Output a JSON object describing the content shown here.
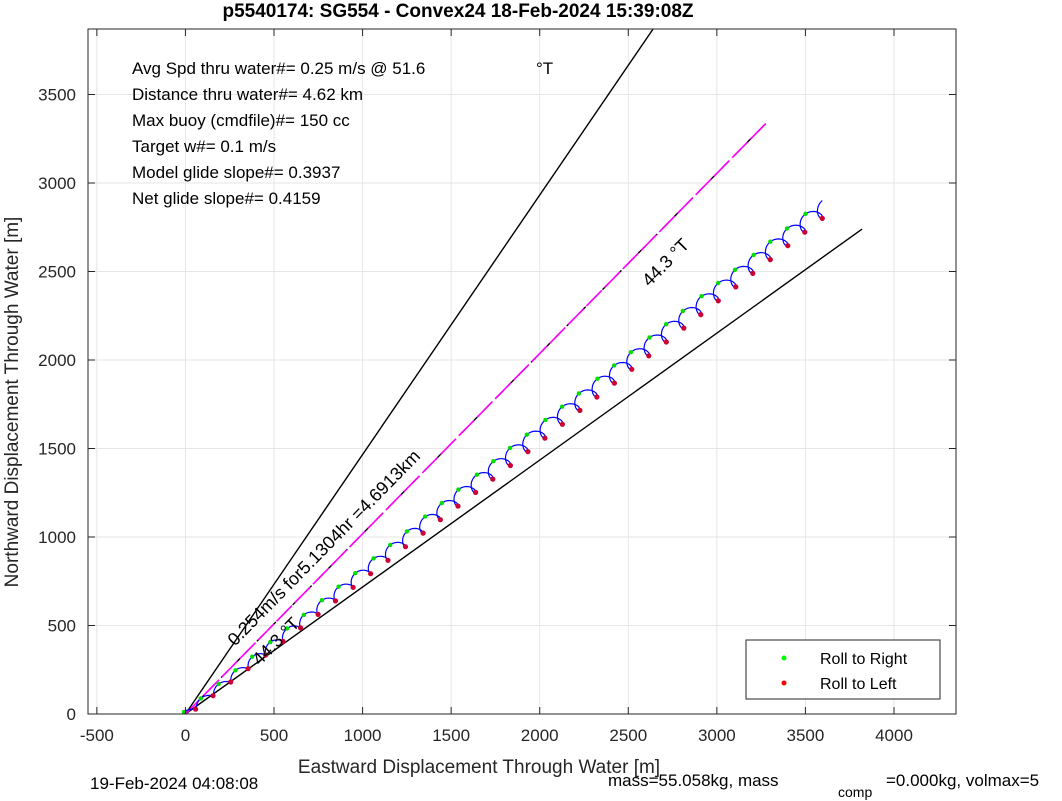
{
  "chart_data": {
    "type": "line",
    "title": "p5540174: SG554 - Convex24 18-Feb-2024 15:39:08Z",
    "xlabel": "Eastward Displacement Through Water [m]",
    "ylabel": "Northward Displacement Through Water [m]",
    "xlim": [
      -550,
      4350
    ],
    "ylim": [
      0,
      3870
    ],
    "x_ticks": [
      -500,
      0,
      500,
      1000,
      1500,
      2000,
      2500,
      3000,
      3500,
      4000
    ],
    "y_ticks": [
      0,
      500,
      1000,
      1500,
      2000,
      2500,
      3000,
      3500
    ],
    "x_tick_labels": [
      "-500",
      "0",
      "500",
      "1000",
      "1500",
      "2000",
      "2500",
      "3000",
      "3500",
      "4000"
    ],
    "y_tick_labels": [
      "0",
      "500",
      "1000",
      "1500",
      "2000",
      "2500",
      "3000",
      "3500"
    ],
    "grid": true,
    "info_lines": [
      "Avg Spd thru water#=  0.25 m/s @  51.6",
      "Distance thru water#=  4.62 km",
      "Max buoy (cmdfile)#= 150 cc",
      "Target w#= 0.1 m/s",
      "Model glide slope#= 0.3937",
      "Net glide slope#= 0.4159"
    ],
    "info_unit": "°T",
    "reference_lines": [
      {
        "x": [
          0,
          2640
        ],
        "y": [
          0,
          3870
        ],
        "color": "#000000"
      },
      {
        "x": [
          0,
          3820
        ],
        "y": [
          0,
          2740
        ],
        "color": "#000000"
      },
      {
        "x": [
          0,
          3290
        ],
        "y": [
          0,
          3350
        ],
        "color": "#000000",
        "dash": true
      }
    ],
    "vector_line": {
      "x": [
        0,
        3290
      ],
      "y": [
        0,
        3350
      ],
      "color": "#ff00ff"
    },
    "track": {
      "color": "#0000ff",
      "start": [
        0,
        0
      ],
      "end": [
        3620,
        2870
      ],
      "loops": 37,
      "amplitude": 28,
      "gaps": [
        {
          "center": 2000,
          "x": [
            1960,
            2050
          ],
          "y": [
            1730,
            1730
          ]
        },
        {
          "center": 1200,
          "x": [
            1160,
            1250
          ],
          "y": [
            995,
            1000
          ]
        }
      ]
    },
    "annotations": [
      {
        "text": "44.3 °T",
        "x": 2620,
        "y": 2410,
        "angle": -45.5
      },
      {
        "text": "0.254m/s for5.1304hr =4.6913km",
        "x": 280,
        "y": 380,
        "angle": -45.5
      },
      {
        "text": "44.3 °T",
        "x": 420,
        "y": 270,
        "angle": -45.5
      }
    ],
    "legend": {
      "placement": "bottom-right",
      "entries": [
        {
          "label": "Roll to Right",
          "color": "#00ff00"
        },
        {
          "label": "Roll to Left",
          "color": "#ff0000"
        }
      ]
    }
  },
  "footer": {
    "left": "19-Feb-2024 04:08:08",
    "right_main": "mass=55.058kg, mass",
    "right_sub": "comp",
    "right_tail": "=0.000kg, volmax=5"
  }
}
